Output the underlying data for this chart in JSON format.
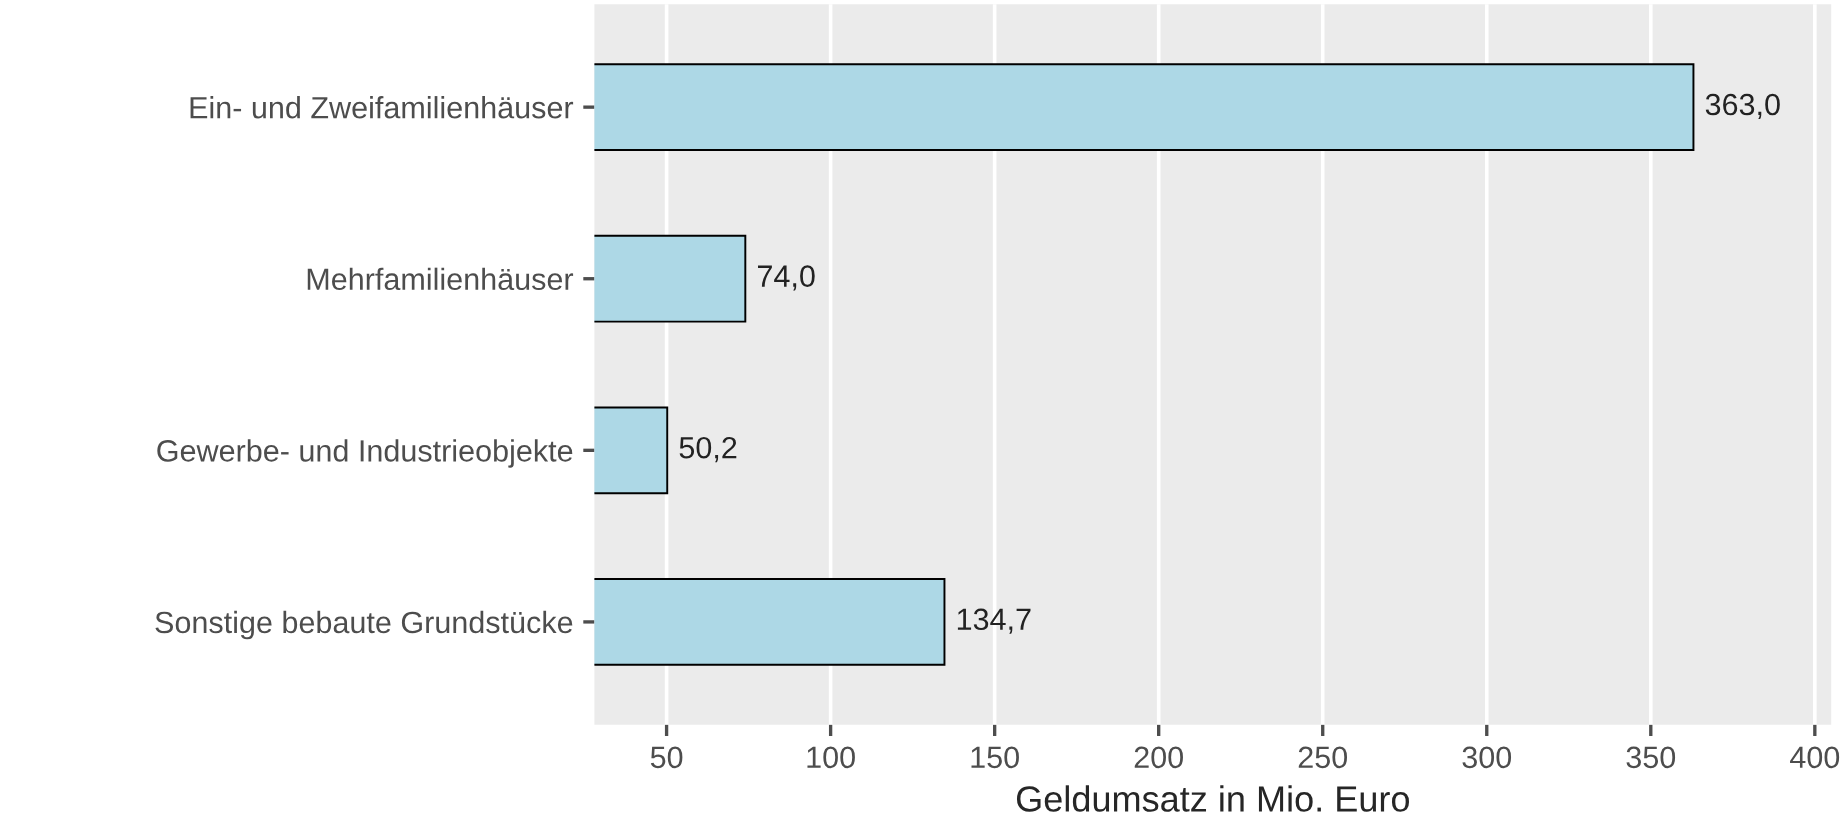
{
  "chart_data": {
    "type": "bar",
    "orientation": "horizontal",
    "categories": [
      "Ein- und Zweifamilienhäuser",
      "Mehrfamilienhäuser",
      "Gewerbe- und Industrieobjekte",
      "Sonstige bebaute Grundstücke"
    ],
    "values": [
      363.0,
      74.0,
      50.2,
      134.7
    ],
    "value_labels": [
      "363,0",
      "74,0",
      "50,2",
      "134,7"
    ],
    "color": "#add8e6",
    "xlabel": "Geldumsatz in Mio. Euro",
    "xlim": [
      28,
      405
    ],
    "xticks": [
      50,
      100,
      150,
      200,
      250,
      300,
      350,
      400
    ],
    "grid": "x"
  }
}
